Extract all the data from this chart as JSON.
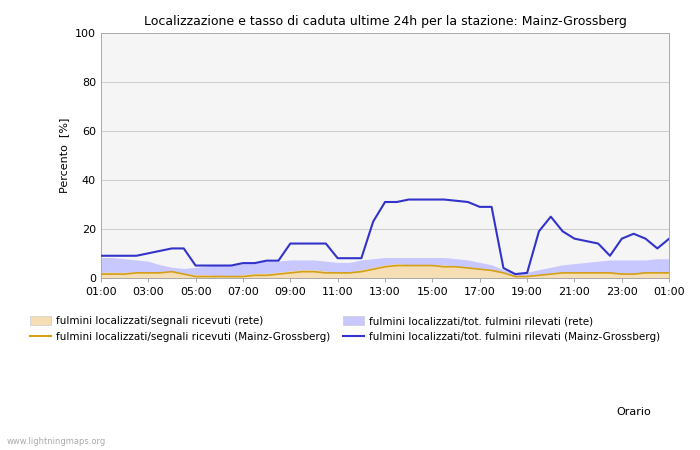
{
  "title": "Localizzazione e tasso di caduta ultime 24h per la stazione: Mainz-Grossberg",
  "xlabel": "Orario",
  "ylabel": "Percento  [%]",
  "xlim": [
    0,
    24
  ],
  "ylim": [
    0,
    100
  ],
  "yticks": [
    0,
    20,
    40,
    60,
    80,
    100
  ],
  "xtick_labels": [
    "01:00",
    "03:00",
    "05:00",
    "07:00",
    "09:00",
    "11:00",
    "13:00",
    "15:00",
    "17:00",
    "19:00",
    "21:00",
    "23:00",
    "01:00"
  ],
  "xtick_positions": [
    0,
    2,
    4,
    6,
    8,
    10,
    12,
    14,
    16,
    18,
    20,
    22,
    24
  ],
  "background_color": "#ffffff",
  "plot_bg_color": "#f5f5f5",
  "grid_color": "#cccccc",
  "watermark": "www.lightningmaps.org",
  "x": [
    0,
    0.5,
    1,
    1.5,
    2,
    2.5,
    3,
    3.5,
    4,
    4.5,
    5,
    5.5,
    6,
    6.5,
    7,
    7.5,
    8,
    8.5,
    9,
    9.5,
    10,
    10.5,
    11,
    11.5,
    12,
    12.5,
    13,
    13.5,
    14,
    14.5,
    15,
    15.5,
    16,
    16.5,
    17,
    17.5,
    18,
    18.5,
    19,
    19.5,
    20,
    20.5,
    21,
    21.5,
    22,
    22.5,
    23,
    23.5,
    24
  ],
  "fill_net_signals": [
    2,
    2,
    2,
    2,
    2,
    2,
    2.5,
    1.5,
    1,
    1,
    0.5,
    0.5,
    1,
    1.5,
    1.5,
    2,
    2.5,
    3,
    3,
    2.5,
    2,
    2,
    3,
    4,
    5,
    5.5,
    5,
    5,
    5,
    5,
    4.5,
    4,
    3.5,
    3,
    2,
    0.5,
    0.5,
    1,
    1.5,
    2,
    2,
    2,
    2,
    2,
    1.5,
    1.5,
    2,
    2,
    2
  ],
  "fill_net_total": [
    8,
    8,
    7.5,
    7,
    6.5,
    5,
    4,
    3.5,
    4,
    4.5,
    5,
    5,
    5.5,
    6,
    6.5,
    6.5,
    7,
    7,
    7,
    6.5,
    6,
    6,
    7,
    7.5,
    8,
    8,
    8,
    8,
    8,
    8,
    7.5,
    7,
    6,
    5,
    3,
    1.5,
    2,
    3,
    4,
    5,
    5.5,
    6,
    6.5,
    7,
    7,
    7,
    7,
    7.5,
    7.5
  ],
  "line_station_signals": [
    1.5,
    1.5,
    1.5,
    2,
    2,
    2,
    2.5,
    1.5,
    0.5,
    0.5,
    0.5,
    0.5,
    0.5,
    1,
    1,
    1.5,
    2,
    2.5,
    2.5,
    2,
    2,
    2,
    2.5,
    3.5,
    4.5,
    5,
    5,
    5,
    5,
    4.5,
    4.5,
    4,
    3.5,
    3,
    2,
    0.5,
    0.5,
    1,
    1.5,
    2,
    2,
    2,
    2,
    2,
    1.5,
    1.5,
    2,
    2,
    2
  ],
  "line_station_total": [
    9,
    9,
    9,
    9,
    10,
    11,
    12,
    12,
    5,
    5,
    5,
    5,
    6,
    6,
    7,
    7,
    14,
    14,
    14,
    14,
    8,
    8,
    8,
    23,
    31,
    31,
    32,
    32,
    32,
    32,
    31.5,
    31,
    29,
    29,
    4,
    1.5,
    2,
    19,
    25,
    19,
    16,
    15,
    14,
    9,
    16,
    18,
    16,
    12,
    16
  ],
  "color_fill_signals": "#f5deb3",
  "color_fill_total": "#c8c8ff",
  "color_line_signals": "#d4a017",
  "color_line_total": "#3333cc",
  "legend_entries": [
    {
      "label": "fulmini localizzati/segnali ricevuti (rete)",
      "type": "fill",
      "color": "#f5deb3"
    },
    {
      "label": "fulmini localizzati/segnali ricevuti (Mainz-Grossberg)",
      "type": "line",
      "color": "#d4a017"
    },
    {
      "label": "fulmini localizzati/tot. fulmini rilevati (rete)",
      "type": "fill",
      "color": "#c8c8ff"
    },
    {
      "label": "fulmini localizzati/tot. fulmini rilevati (Mainz-Grossberg)",
      "type": "line",
      "color": "#3333cc"
    }
  ]
}
